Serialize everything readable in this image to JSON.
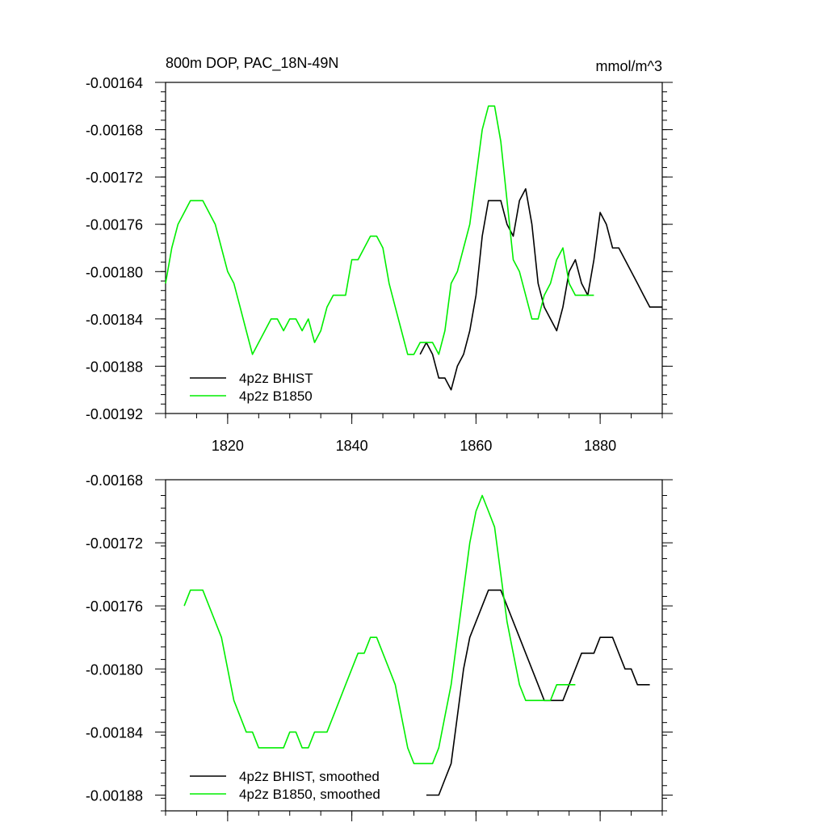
{
  "chart_data": [
    {
      "type": "line",
      "title": "800m DOP, PAC_18N-49N",
      "units": "mmol/m^3",
      "xlim": [
        1810,
        1890
      ],
      "ylim": [
        -0.00192,
        -0.00164
      ],
      "x_ticks": [
        1820,
        1840,
        1860,
        1880
      ],
      "y_ticks": [
        -0.00164,
        -0.00168,
        -0.00172,
        -0.00176,
        -0.0018,
        -0.00184,
        -0.00188,
        -0.00192
      ],
      "y_tick_labels": [
        "-0.00164",
        "-0.00168",
        "-0.00172",
        "-0.00176",
        "-0.00180",
        "-0.00184",
        "-0.00188",
        "-0.00192"
      ],
      "grid": false,
      "legend_position": "bottom-left",
      "series": [
        {
          "name": "4p2z BHIST",
          "color": "#000000",
          "x": [
            1851,
            1852,
            1853,
            1854,
            1855,
            1856,
            1857,
            1858,
            1859,
            1860,
            1861,
            1862,
            1863,
            1864,
            1865,
            1866,
            1867,
            1868,
            1869,
            1870,
            1871,
            1872,
            1873,
            1874,
            1875,
            1876,
            1877,
            1878,
            1879,
            1880,
            1881,
            1882,
            1883,
            1884,
            1885,
            1886,
            1887,
            1888,
            1889,
            1890
          ],
          "y": [
            -0.00187,
            -0.00186,
            -0.00187,
            -0.00189,
            -0.00189,
            -0.0019,
            -0.00188,
            -0.00187,
            -0.00185,
            -0.00182,
            -0.00177,
            -0.00174,
            -0.00174,
            -0.00174,
            -0.00176,
            -0.00177,
            -0.00174,
            -0.00173,
            -0.00176,
            -0.00181,
            -0.00183,
            -0.00184,
            -0.00185,
            -0.00183,
            -0.0018,
            -0.00179,
            -0.00181,
            -0.00182,
            -0.00179,
            -0.00175,
            -0.00176,
            -0.00178,
            -0.00178,
            -0.00179,
            -0.0018,
            -0.00181,
            -0.00182,
            -0.00183,
            -0.00183,
            -0.00183
          ]
        },
        {
          "name": "4p2z B1850",
          "color": "#00ee00",
          "x": [
            1810,
            1811,
            1812,
            1813,
            1814,
            1815,
            1816,
            1817,
            1818,
            1819,
            1820,
            1821,
            1822,
            1823,
            1824,
            1825,
            1826,
            1827,
            1828,
            1829,
            1830,
            1831,
            1832,
            1833,
            1834,
            1835,
            1836,
            1837,
            1838,
            1839,
            1840,
            1841,
            1842,
            1843,
            1844,
            1845,
            1846,
            1847,
            1848,
            1849,
            1850,
            1851,
            1852,
            1853,
            1854,
            1855,
            1856,
            1857,
            1858,
            1859,
            1860,
            1861,
            1862,
            1863,
            1864,
            1865,
            1866,
            1867,
            1868,
            1869,
            1870,
            1871,
            1872,
            1873,
            1874,
            1875,
            1876,
            1877,
            1878,
            1879
          ],
          "y": [
            -0.00181,
            -0.00178,
            -0.00176,
            -0.00175,
            -0.00174,
            -0.00174,
            -0.00174,
            -0.00175,
            -0.00176,
            -0.00178,
            -0.0018,
            -0.00181,
            -0.00183,
            -0.00185,
            -0.00187,
            -0.00186,
            -0.00185,
            -0.00184,
            -0.00184,
            -0.00185,
            -0.00184,
            -0.00184,
            -0.00185,
            -0.00184,
            -0.00186,
            -0.00185,
            -0.00183,
            -0.00182,
            -0.00182,
            -0.00182,
            -0.00179,
            -0.00179,
            -0.00178,
            -0.00177,
            -0.00177,
            -0.00178,
            -0.00181,
            -0.00183,
            -0.00185,
            -0.00187,
            -0.00187,
            -0.00186,
            -0.00186,
            -0.00186,
            -0.00187,
            -0.00185,
            -0.00181,
            -0.0018,
            -0.00178,
            -0.00176,
            -0.00172,
            -0.00168,
            -0.00166,
            -0.00166,
            -0.00169,
            -0.00174,
            -0.00179,
            -0.0018,
            -0.00182,
            -0.00184,
            -0.00184,
            -0.00182,
            -0.00181,
            -0.00179,
            -0.00178,
            -0.00181,
            -0.00182,
            -0.00182,
            -0.00182,
            -0.00182
          ]
        }
      ]
    },
    {
      "type": "line",
      "xlim": [
        1810,
        1890
      ],
      "ylim": [
        -0.00189,
        -0.00168
      ],
      "x_ticks": [
        1820,
        1840,
        1860,
        1880
      ],
      "y_ticks": [
        -0.00168,
        -0.00172,
        -0.00176,
        -0.0018,
        -0.00184,
        -0.00188
      ],
      "y_tick_labels": [
        "-0.00168",
        "-0.00172",
        "-0.00176",
        "-0.00180",
        "-0.00184",
        "-0.00188"
      ],
      "grid": false,
      "legend_position": "bottom-left",
      "series": [
        {
          "name": "4p2z BHIST, smoothed",
          "color": "#000000",
          "x": [
            1852,
            1853,
            1854,
            1855,
            1856,
            1857,
            1858,
            1859,
            1860,
            1861,
            1862,
            1863,
            1864,
            1865,
            1866,
            1867,
            1868,
            1869,
            1870,
            1871,
            1872,
            1873,
            1874,
            1875,
            1876,
            1877,
            1878,
            1879,
            1880,
            1881,
            1882,
            1883,
            1884,
            1885,
            1886,
            1887,
            1888
          ],
          "y": [
            -0.00188,
            -0.00188,
            -0.00188,
            -0.00187,
            -0.00186,
            -0.00183,
            -0.0018,
            -0.00178,
            -0.00177,
            -0.00176,
            -0.00175,
            -0.00175,
            -0.00175,
            -0.00176,
            -0.00177,
            -0.00178,
            -0.00179,
            -0.0018,
            -0.00181,
            -0.00182,
            -0.00182,
            -0.00182,
            -0.00182,
            -0.00181,
            -0.0018,
            -0.00179,
            -0.00179,
            -0.00179,
            -0.00178,
            -0.00178,
            -0.00178,
            -0.00179,
            -0.0018,
            -0.0018,
            -0.00181,
            -0.00181,
            -0.00181
          ]
        },
        {
          "name": "4p2z B1850, smoothed",
          "color": "#00ee00",
          "x": [
            1813,
            1814,
            1815,
            1816,
            1817,
            1818,
            1819,
            1820,
            1821,
            1822,
            1823,
            1824,
            1825,
            1826,
            1827,
            1828,
            1829,
            1830,
            1831,
            1832,
            1833,
            1834,
            1835,
            1836,
            1837,
            1838,
            1839,
            1840,
            1841,
            1842,
            1843,
            1844,
            1845,
            1846,
            1847,
            1848,
            1849,
            1850,
            1851,
            1852,
            1853,
            1854,
            1855,
            1856,
            1857,
            1858,
            1859,
            1860,
            1861,
            1862,
            1863,
            1864,
            1865,
            1866,
            1867,
            1868,
            1869,
            1870,
            1871,
            1872,
            1873,
            1874,
            1875,
            1876
          ],
          "y": [
            -0.00176,
            -0.00175,
            -0.00175,
            -0.00175,
            -0.00176,
            -0.00177,
            -0.00178,
            -0.0018,
            -0.00182,
            -0.00183,
            -0.00184,
            -0.00184,
            -0.00185,
            -0.00185,
            -0.00185,
            -0.00185,
            -0.00185,
            -0.00184,
            -0.00184,
            -0.00185,
            -0.00185,
            -0.00184,
            -0.00184,
            -0.00184,
            -0.00183,
            -0.00182,
            -0.00181,
            -0.0018,
            -0.00179,
            -0.00179,
            -0.00178,
            -0.00178,
            -0.00179,
            -0.0018,
            -0.00181,
            -0.00183,
            -0.00185,
            -0.00186,
            -0.00186,
            -0.00186,
            -0.00186,
            -0.00185,
            -0.00183,
            -0.00181,
            -0.00178,
            -0.00175,
            -0.00172,
            -0.0017,
            -0.00169,
            -0.0017,
            -0.00171,
            -0.00174,
            -0.00177,
            -0.00179,
            -0.00181,
            -0.00182,
            -0.00182,
            -0.00182,
            -0.00182,
            -0.00182,
            -0.00181,
            -0.00181,
            -0.00181,
            -0.00181
          ]
        }
      ]
    }
  ]
}
